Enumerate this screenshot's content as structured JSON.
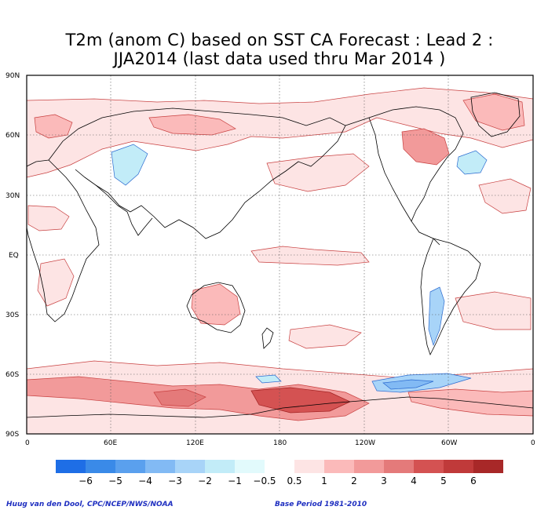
{
  "title_line1": "T2m (anom C) based on SST CA Forecast : Lead 2 :",
  "title_line2": "JJA2014 (last data used thru Mar 2014 )",
  "lat_labels": [
    "90N",
    "60N",
    "30N",
    "EQ",
    "30S",
    "60S",
    "90S"
  ],
  "lon_labels": [
    "0",
    "60E",
    "120E",
    "180",
    "120W",
    "60W",
    "0"
  ],
  "legend": {
    "labels": [
      "−6",
      "−5",
      "−4",
      "−3",
      "−2",
      "−1",
      "−0.5",
      "0.5",
      "1",
      "2",
      "3",
      "4",
      "5",
      "6"
    ],
    "colors": [
      "#1e6ee6",
      "#3a8ae8",
      "#5aa0ee",
      "#82baf4",
      "#a8d4f8",
      "#c2ecf8",
      "#e2fafc",
      "#ffffff",
      "#fde4e4",
      "#fbbaba",
      "#f29a9a",
      "#e47a7a",
      "#d45252",
      "#c03a3a",
      "#a82828"
    ]
  },
  "credit_left": "Huug van den Dool, CPC/NCEP/NWS/NOAA",
  "credit_right": "Base Period 1981-2010"
}
